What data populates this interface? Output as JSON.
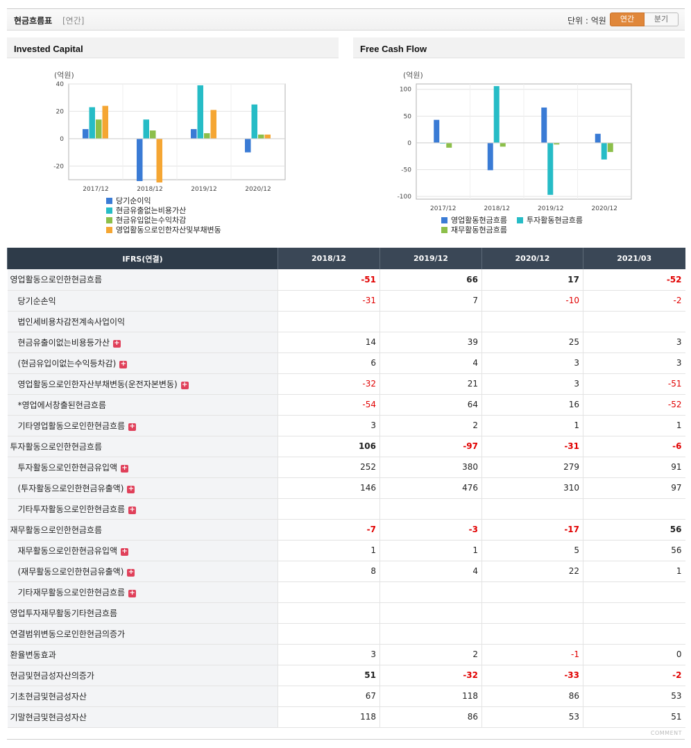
{
  "header": {
    "title": "현금흐름표",
    "subtitle": "[연간]",
    "unit": "단위 : 억원",
    "tabs": [
      "연간",
      "분기"
    ]
  },
  "charts": {
    "ic": {
      "title": "Invested Capital",
      "unit_label": "(억원)"
    },
    "fcf": {
      "title": "Free Cash Flow",
      "unit_label": "(억원)"
    }
  },
  "chart_data": [
    {
      "type": "bar",
      "title": "Invested Capital",
      "ylabel": "(억원)",
      "categories": [
        "2017/12",
        "2018/12",
        "2019/12",
        "2020/12"
      ],
      "ylim": [
        -30,
        40
      ],
      "yticks": [
        40,
        20,
        0,
        -20
      ],
      "legend": "bottom",
      "series": [
        {
          "name": "당기순이익",
          "color": "#3a7bd5",
          "values": [
            7,
            -31,
            7,
            -10
          ]
        },
        {
          "name": "현금유출없는비용가산",
          "color": "#26bcc6",
          "values": [
            23,
            14,
            39,
            25
          ]
        },
        {
          "name": "현금유입없는수익차감",
          "color": "#8cbf4a",
          "values": [
            14,
            6,
            4,
            3
          ]
        },
        {
          "name": "영업활동으로인한자산및부채변동",
          "color": "#f5a633",
          "values": [
            24,
            -32,
            21,
            3
          ]
        }
      ]
    },
    {
      "type": "bar",
      "title": "Free Cash Flow",
      "ylabel": "(억원)",
      "categories": [
        "2017/12",
        "2018/12",
        "2019/12",
        "2020/12"
      ],
      "ylim": [
        -105,
        110
      ],
      "yticks": [
        100,
        50,
        0,
        -50,
        -100
      ],
      "legend": "bottom",
      "series": [
        {
          "name": "영업활동현금흐름",
          "color": "#3a7bd5",
          "values": [
            43,
            -51,
            66,
            17
          ]
        },
        {
          "name": "투자활동현금흐름",
          "color": "#26bcc6",
          "values": [
            0,
            106,
            -97,
            -31
          ]
        },
        {
          "name": "재무활동현금흐름",
          "color": "#8cbf4a",
          "values": [
            -9,
            -7,
            -3,
            -17
          ]
        }
      ]
    }
  ],
  "table": {
    "header": [
      "IFRS(연결)",
      "2018/12",
      "2019/12",
      "2020/12",
      "2021/03"
    ],
    "rows": [
      {
        "label": "영업활동으로인한현금흐름",
        "section": true,
        "plus": false,
        "values": [
          "-51",
          "66",
          "17",
          "-52"
        ]
      },
      {
        "label": "당기순손익",
        "section": false,
        "plus": false,
        "values": [
          "-31",
          "7",
          "-10",
          "-2"
        ]
      },
      {
        "label": "법인세비용차감전계속사업이익",
        "section": false,
        "plus": false,
        "values": [
          "",
          "",
          "",
          ""
        ]
      },
      {
        "label": "현금유출이없는비용등가산",
        "section": false,
        "plus": true,
        "values": [
          "14",
          "39",
          "25",
          "3"
        ]
      },
      {
        "label": "(현금유입이없는수익등차감)",
        "section": false,
        "plus": true,
        "values": [
          "6",
          "4",
          "3",
          "3"
        ]
      },
      {
        "label": "영업활동으로인한자산부채변동(운전자본변동)",
        "section": false,
        "plus": true,
        "values": [
          "-32",
          "21",
          "3",
          "-51"
        ]
      },
      {
        "label": "*영업에서창출된현금흐름",
        "section": false,
        "plus": false,
        "values": [
          "-54",
          "64",
          "16",
          "-52"
        ]
      },
      {
        "label": "기타영업활동으로인한현금흐름",
        "section": false,
        "plus": true,
        "values": [
          "3",
          "2",
          "1",
          "1"
        ]
      },
      {
        "label": "투자활동으로인한현금흐름",
        "section": true,
        "plus": false,
        "values": [
          "106",
          "-97",
          "-31",
          "-6"
        ]
      },
      {
        "label": "투자활동으로인한현금유입액",
        "section": false,
        "plus": true,
        "values": [
          "252",
          "380",
          "279",
          "91"
        ]
      },
      {
        "label": "(투자활동으로인한현금유출액)",
        "section": false,
        "plus": true,
        "values": [
          "146",
          "476",
          "310",
          "97"
        ]
      },
      {
        "label": "기타투자활동으로인한현금흐름",
        "section": false,
        "plus": true,
        "values": [
          "",
          "",
          "",
          ""
        ]
      },
      {
        "label": "재무활동으로인한현금흐름",
        "section": true,
        "plus": false,
        "values": [
          "-7",
          "-3",
          "-17",
          "56"
        ]
      },
      {
        "label": "재무활동으로인한현금유입액",
        "section": false,
        "plus": true,
        "values": [
          "1",
          "1",
          "5",
          "56"
        ]
      },
      {
        "label": "(재무활동으로인한현금유출액)",
        "section": false,
        "plus": true,
        "values": [
          "8",
          "4",
          "22",
          "1"
        ]
      },
      {
        "label": "기타재무활동으로인한현금흐름",
        "section": false,
        "plus": true,
        "values": [
          "",
          "",
          "",
          ""
        ]
      },
      {
        "label": "영업투자재무활동기타현금흐름",
        "section": false,
        "top": true,
        "plus": false,
        "values": [
          "",
          "",
          "",
          ""
        ]
      },
      {
        "label": "연결범위변동으로인한현금의증가",
        "section": false,
        "top": true,
        "plus": false,
        "values": [
          "",
          "",
          "",
          ""
        ]
      },
      {
        "label": "환율변동효과",
        "section": false,
        "top": true,
        "plus": false,
        "values": [
          "3",
          "2",
          "-1",
          "0"
        ]
      },
      {
        "label": "현금및현금성자산의증가",
        "section": true,
        "plus": false,
        "values": [
          "51",
          "-32",
          "-33",
          "-2"
        ]
      },
      {
        "label": "기초현금및현금성자산",
        "section": false,
        "top": true,
        "plus": false,
        "values": [
          "67",
          "118",
          "86",
          "53"
        ]
      },
      {
        "label": "기말현금및현금성자산",
        "section": false,
        "top": true,
        "plus": false,
        "values": [
          "118",
          "86",
          "53",
          "51"
        ]
      }
    ]
  },
  "footer": {
    "comment_label": "COMMENT"
  }
}
